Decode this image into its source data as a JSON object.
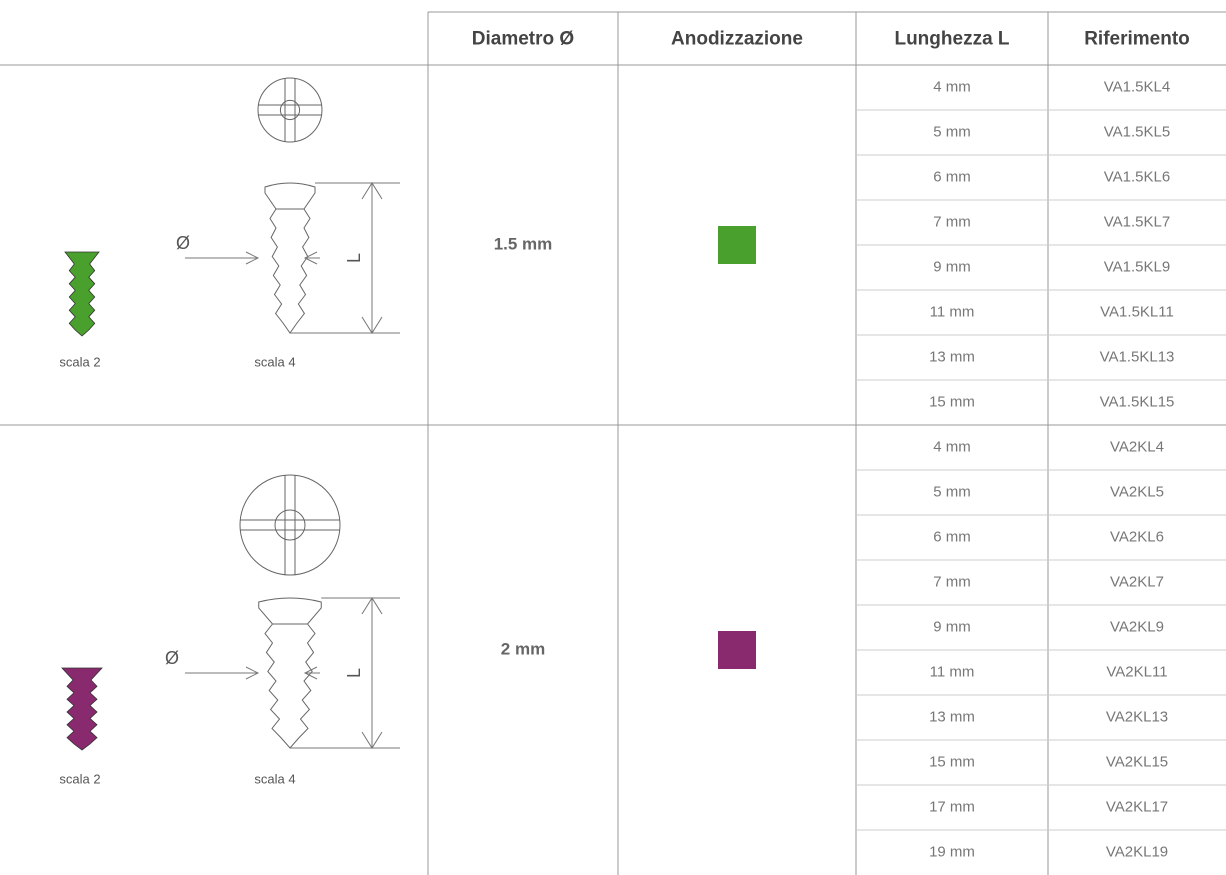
{
  "table": {
    "header": [
      "Diametro Ø",
      "Anodizzazione",
      "Lunghezza L",
      "Riferimento"
    ],
    "groups": [
      {
        "diameter": "1.5 mm",
        "color": "#4aa02c",
        "scale_small": "scala 2",
        "scale_large": "scala 4",
        "diameter_symbol": "Ø",
        "length_symbol": "L",
        "rows": [
          [
            "4 mm",
            "VA1.5KL4"
          ],
          [
            "5 mm",
            "VA1.5KL5"
          ],
          [
            "6 mm",
            "VA1.5KL6"
          ],
          [
            "7 mm",
            "VA1.5KL7"
          ],
          [
            "9 mm",
            "VA1.5KL9"
          ],
          [
            "11 mm",
            "VA1.5KL11"
          ],
          [
            "13 mm",
            "VA1.5KL13"
          ],
          [
            "15 mm",
            "VA1.5KL15"
          ]
        ]
      },
      {
        "diameter": "2 mm",
        "color": "#8a2a6e",
        "scale_small": "scala 2",
        "scale_large": "scala 4",
        "diameter_symbol": "Ø",
        "length_symbol": "L",
        "rows": [
          [
            "4 mm",
            "VA2KL4"
          ],
          [
            "5 mm",
            "VA2KL5"
          ],
          [
            "6 mm",
            "VA2KL6"
          ],
          [
            "7 mm",
            "VA2KL7"
          ],
          [
            "9 mm",
            "VA2KL9"
          ],
          [
            "11 mm",
            "VA2KL11"
          ],
          [
            "13 mm",
            "VA2KL13"
          ],
          [
            "15 mm",
            "VA2KL15"
          ],
          [
            "17 mm",
            "VA2KL17"
          ],
          [
            "19 mm",
            "VA2KL19"
          ]
        ]
      }
    ]
  }
}
